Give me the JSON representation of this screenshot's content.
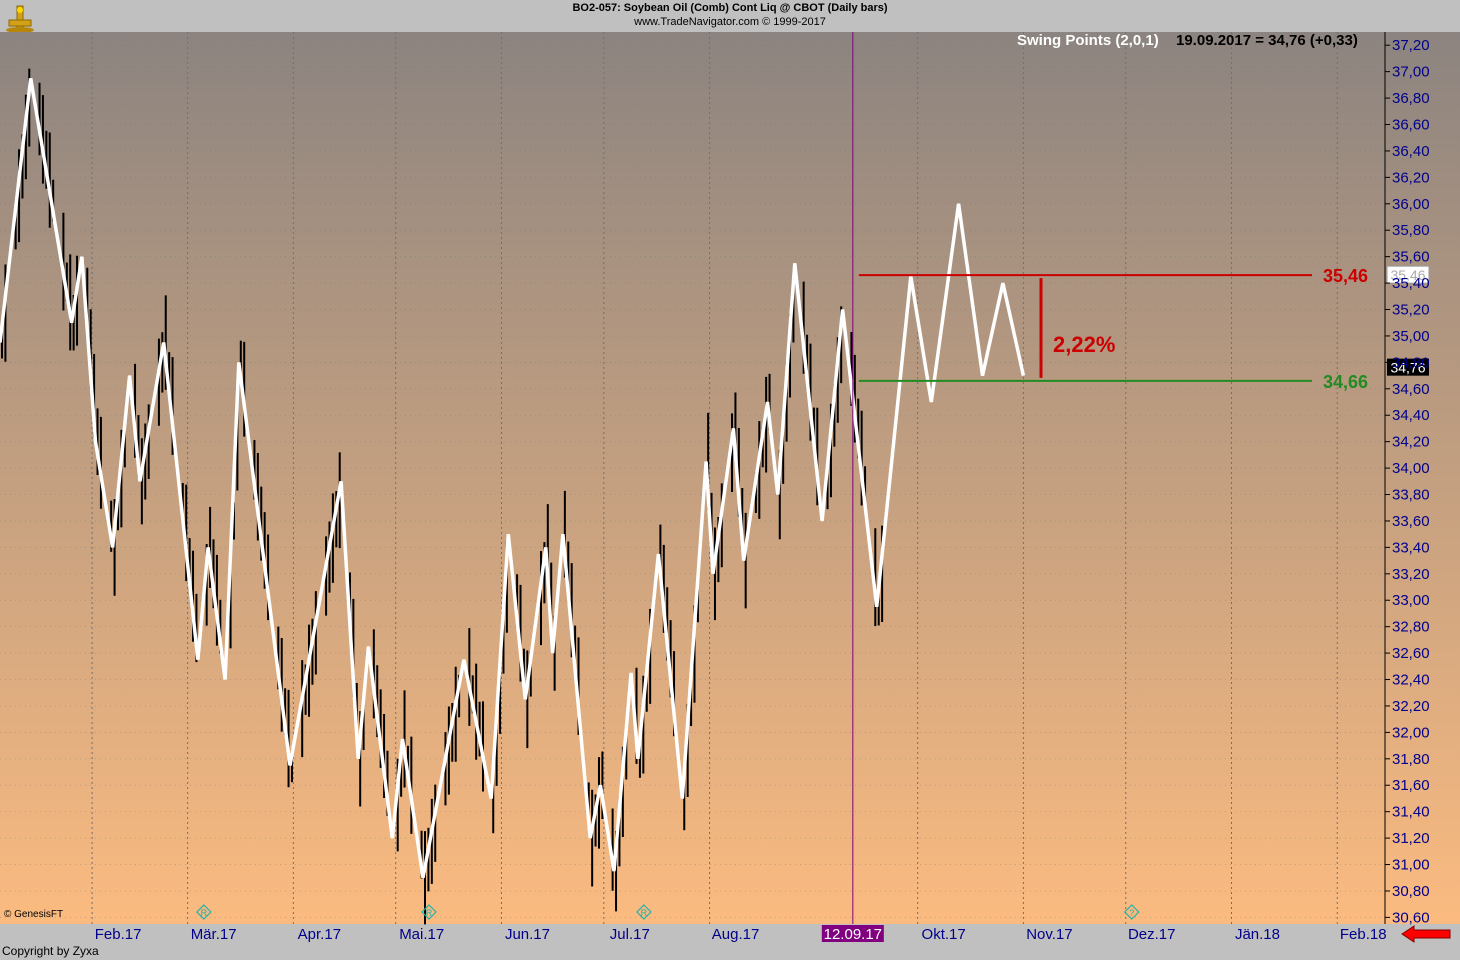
{
  "header": {
    "title": "BO2-057:  Soybean Oil (Comb) Cont Liq @ CBOT  (Daily bars)",
    "copyright": "www.TradeNavigator.com © 1999-2017"
  },
  "indicator": {
    "label": "Swing Points (2,0,1)",
    "readout": "19.09.2017 = 34,76 (+0,33)"
  },
  "footer": {
    "genesis": "© GenesisFT",
    "copyright": "Copyright by Zyxa"
  },
  "colors": {
    "bg_top": "#8c8480",
    "bg_bottom": "#fbbb80",
    "swing_line": "#ffffff",
    "bars": "#000000",
    "resistance": "#cc0000",
    "support": "#228b22",
    "vline": "#800080",
    "date_tag": "#800080",
    "axis_text": "#00008b"
  },
  "chart_data": {
    "type": "line",
    "xlabel": "",
    "ylabel": "",
    "ylim": [
      30.55,
      37.3
    ],
    "y_ticks": [
      "30,60",
      "30,80",
      "31,00",
      "31,20",
      "31,40",
      "31,60",
      "31,80",
      "32,00",
      "32,20",
      "32,40",
      "32,60",
      "32,80",
      "33,00",
      "33,20",
      "33,40",
      "33,60",
      "33,80",
      "34,00",
      "34,20",
      "34,40",
      "34,60",
      "34,80",
      "35,00",
      "35,20",
      "35,40",
      "35,60",
      "35,80",
      "36,00",
      "36,20",
      "36,40",
      "36,60",
      "36,80",
      "37,00",
      "37,20"
    ],
    "y_tick_values": [
      30.6,
      30.8,
      31.0,
      31.2,
      31.4,
      31.6,
      31.8,
      32.0,
      32.2,
      32.4,
      32.6,
      32.8,
      33.0,
      33.2,
      33.4,
      33.6,
      33.8,
      34.0,
      34.2,
      34.4,
      34.6,
      34.8,
      35.0,
      35.2,
      35.4,
      35.6,
      35.8,
      36.0,
      36.2,
      36.4,
      36.6,
      36.8,
      37.0,
      37.2
    ],
    "x_range": [
      "2017-01-05",
      "2018-02-15"
    ],
    "x_ticks": [
      {
        "label": "Feb.17",
        "date": "2017-02-01"
      },
      {
        "label": "Mär.17",
        "date": "2017-03-01"
      },
      {
        "label": "Apr.17",
        "date": "2017-04-01"
      },
      {
        "label": "Mai.17",
        "date": "2017-05-01"
      },
      {
        "label": "Jun.17",
        "date": "2017-06-01"
      },
      {
        "label": "Jul.17",
        "date": "2017-07-01"
      },
      {
        "label": "Aug.17",
        "date": "2017-08-01"
      },
      {
        "label": "Okt.17",
        "date": "2017-10-01"
      },
      {
        "label": "Nov.17",
        "date": "2017-11-01"
      },
      {
        "label": "Dez.17",
        "date": "2017-12-01"
      },
      {
        "label": "Jän.18",
        "date": "2018-01-01"
      },
      {
        "label": "Feb.18",
        "date": "2018-02-01"
      }
    ],
    "cursor": {
      "date": "2017-09-12",
      "label": "12.09.17"
    },
    "series": [
      {
        "points": [
          [
            "2017-01-05",
            34.95
          ],
          [
            "2017-01-14",
            36.95
          ],
          [
            "2017-01-26",
            35.1
          ],
          [
            "2017-01-29",
            35.6
          ],
          [
            "2017-02-02",
            34.2
          ],
          [
            "2017-02-07",
            33.4
          ],
          [
            "2017-02-12",
            34.7
          ],
          [
            "2017-02-15",
            33.9
          ],
          [
            "2017-02-22",
            34.95
          ],
          [
            "2017-03-04",
            32.55
          ],
          [
            "2017-03-07",
            33.4
          ],
          [
            "2017-03-12",
            32.4
          ],
          [
            "2017-03-16",
            34.8
          ],
          [
            "2017-03-31",
            31.75
          ],
          [
            "2017-04-15",
            33.9
          ],
          [
            "2017-04-20",
            31.8
          ],
          [
            "2017-04-23",
            32.65
          ],
          [
            "2017-04-30",
            31.2
          ],
          [
            "2017-05-03",
            31.95
          ],
          [
            "2017-05-09",
            30.9
          ],
          [
            "2017-05-21",
            32.55
          ],
          [
            "2017-05-29",
            31.5
          ],
          [
            "2017-06-03",
            33.5
          ],
          [
            "2017-06-08",
            32.25
          ],
          [
            "2017-06-14",
            33.4
          ],
          [
            "2017-06-16",
            32.6
          ],
          [
            "2017-06-19",
            33.5
          ],
          [
            "2017-06-27",
            31.2
          ],
          [
            "2017-06-30",
            31.6
          ],
          [
            "2017-07-04",
            30.95
          ],
          [
            "2017-07-09",
            32.45
          ],
          [
            "2017-07-11",
            31.8
          ],
          [
            "2017-07-17",
            33.35
          ],
          [
            "2017-07-24",
            31.5
          ],
          [
            "2017-07-31",
            34.05
          ],
          [
            "2017-08-02",
            33.2
          ],
          [
            "2017-08-08",
            34.3
          ],
          [
            "2017-08-11",
            33.3
          ],
          [
            "2017-08-18",
            34.5
          ],
          [
            "2017-08-21",
            33.8
          ],
          [
            "2017-08-26",
            35.55
          ],
          [
            "2017-09-03",
            33.6
          ],
          [
            "2017-09-09",
            35.2
          ],
          [
            "2017-09-19",
            32.95
          ],
          [
            "2017-09-29",
            35.45
          ],
          [
            "2017-10-05",
            34.5
          ],
          [
            "2017-10-13",
            36.0
          ],
          [
            "2017-10-20",
            34.7
          ],
          [
            "2017-10-26",
            35.4
          ],
          [
            "2017-11-01",
            34.7
          ]
        ]
      }
    ],
    "resistance": {
      "value": 35.46,
      "label": "35,46",
      "axis_label": "35,46"
    },
    "support": {
      "value": 34.66,
      "label": "34,66"
    },
    "last_price": {
      "value": 34.76,
      "label": "34,76"
    },
    "pct_change": {
      "label": "2,22%"
    },
    "markers": [
      {
        "date": "2017-03-04",
        "symbol": "R"
      },
      {
        "date": "2017-05-09",
        "symbol": "R"
      },
      {
        "date": "2017-07-11",
        "symbol": "R"
      },
      {
        "date": "2017-12-01",
        "symbol": "?"
      }
    ]
  }
}
